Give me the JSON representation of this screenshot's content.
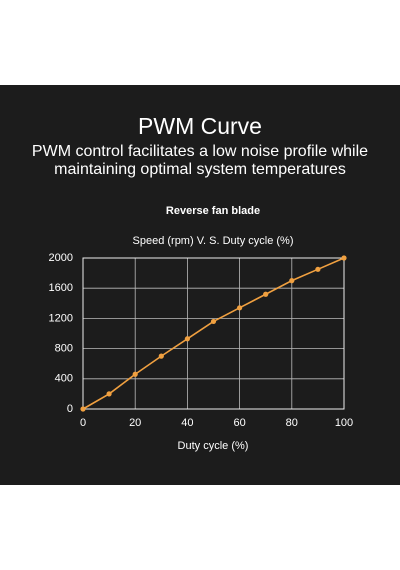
{
  "header": {
    "title": "PWM Curve",
    "subtitle": "PWM control facilitates a low noise profile while maintaining optimal system temperatures"
  },
  "chart_data": {
    "type": "line",
    "title": "Reverse fan blade",
    "subtitle": "Speed (rpm) V. S. Duty cycle (%)",
    "xlabel": "Duty cycle (%)",
    "x": [
      0,
      10,
      20,
      30,
      40,
      50,
      60,
      70,
      80,
      90,
      100
    ],
    "series": [
      {
        "color": "#f0a040",
        "values": [
          0,
          200,
          460,
          700,
          930,
          1160,
          1340,
          1520,
          1700,
          1850,
          2000
        ]
      }
    ],
    "xlim": [
      0,
      100
    ],
    "xticks": [
      0,
      20,
      40,
      60,
      80,
      100
    ],
    "ylim": [
      0,
      2000
    ],
    "yticks": [
      0,
      400,
      800,
      1200,
      1600,
      2000
    ],
    "grid": true
  }
}
